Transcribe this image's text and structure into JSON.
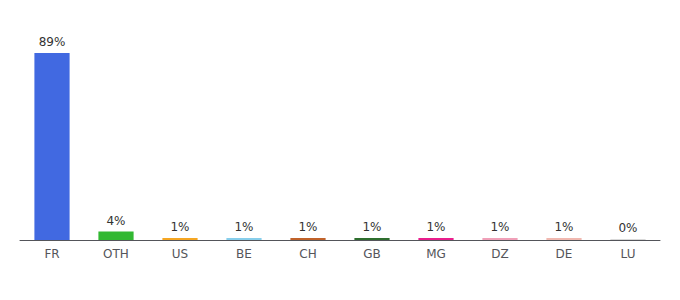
{
  "chart_data": {
    "type": "bar",
    "categories": [
      "FR",
      "OTH",
      "US",
      "BE",
      "CH",
      "GB",
      "MG",
      "DZ",
      "DE",
      "LU"
    ],
    "values": [
      89,
      4,
      1,
      1,
      1,
      1,
      1,
      1,
      1,
      0.3
    ],
    "value_labels": [
      "89%",
      "4%",
      "1%",
      "1%",
      "1%",
      "1%",
      "1%",
      "1%",
      "1%",
      "0%"
    ],
    "data_labels": true,
    "colors": [
      "#4169e1",
      "#32b832",
      "#f5a623",
      "#87ceeb",
      "#c0622a",
      "#2e6e2e",
      "#e91e8c",
      "#f0a0b8",
      "#f0b8b0",
      "#cccccc"
    ],
    "ylim": [
      0,
      100
    ],
    "tick_labels": "x",
    "grid": false
  }
}
